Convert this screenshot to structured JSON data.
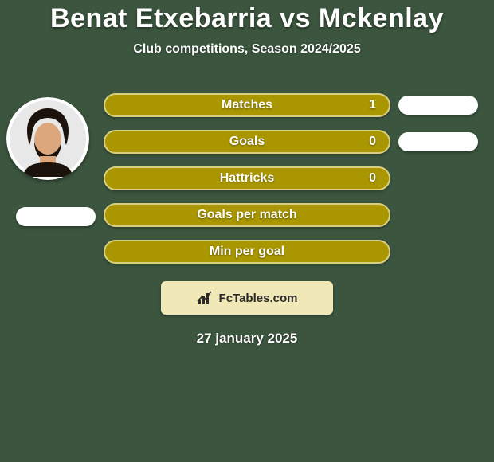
{
  "background_color": "#3b553e",
  "title": {
    "text": "Benat Etxebarria vs Mckenlay",
    "color": "#ffffff",
    "fontsize": 34
  },
  "subtitle": {
    "text": "Club competitions, Season 2024/2025",
    "color": "#ffffff",
    "fontsize": 16
  },
  "bar_style": {
    "fill_color": "#a99600",
    "border_color": "#d9cf80",
    "label_color": "#ffffff",
    "value_color": "#ffffff",
    "height": 30,
    "border_radius": 16,
    "border_width": 2,
    "label_fontsize": 16
  },
  "side_pill": {
    "color": "#ffffff",
    "width": 100,
    "height": 24
  },
  "avatar": {
    "ring_color": "#ffffff",
    "skin_color": "#dca77c",
    "hair_color": "#1a120b",
    "bg_color": "#e8e8e8"
  },
  "rows": [
    {
      "label": "Matches",
      "value": "1",
      "show_value": true,
      "right_pill": true
    },
    {
      "label": "Goals",
      "value": "0",
      "show_value": true,
      "right_pill": true
    },
    {
      "label": "Hattricks",
      "value": "0",
      "show_value": true,
      "right_pill": false
    },
    {
      "label": "Goals per match",
      "value": "",
      "show_value": false,
      "right_pill": false
    },
    {
      "label": "Min per goal",
      "value": "",
      "show_value": false,
      "right_pill": false
    }
  ],
  "badge": {
    "bg_color": "#f1e8b8",
    "text": "FcTables.com",
    "text_color": "#2a2a2a",
    "icon_color": "#2a2a2a"
  },
  "date": {
    "text": "27 january 2025",
    "color": "#ffffff"
  }
}
